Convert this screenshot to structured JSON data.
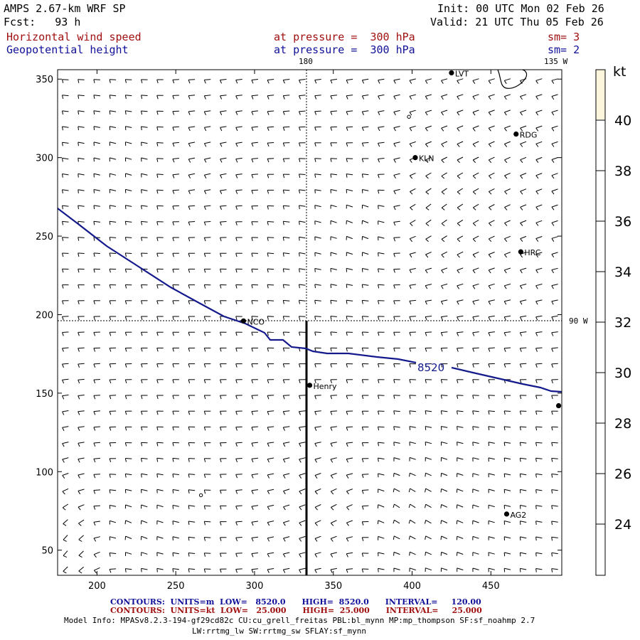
{
  "header": {
    "model": "AMPS 2.67-km WRF SP",
    "forecast": "Fcst:   93 h",
    "init": "Init: 00 UTC Mon 02 Feb 26",
    "valid": "Valid: 21 UTC Thu 05 Feb 26",
    "field1_name": "Horizontal wind speed",
    "field1_level": "at pressure =  300 hPa",
    "field1_smooth": "sm= 3",
    "field2_name": "Geopotential height",
    "field2_level": "at pressure =  300 hPa",
    "field2_smooth": "sm= 2"
  },
  "map": {
    "x_ticks": [
      200,
      250,
      300,
      350,
      400,
      450
    ],
    "y_ticks": [
      50,
      100,
      150,
      200,
      250,
      300,
      350
    ],
    "x_range": [
      175,
      495
    ],
    "y_range": [
      34,
      356
    ],
    "meridian_label_top": "180",
    "meridian_label_corner": "135 W",
    "meridian_label_right": "90 W",
    "contour_label": "8520",
    "contour_color": "#141a8c",
    "stations": [
      {
        "name": "NCO",
        "x": 293,
        "y": 196
      },
      {
        "name": "Henry",
        "x": 335,
        "y": 155
      },
      {
        "name": "KLN",
        "x": 402,
        "y": 300
      },
      {
        "name": "RDG",
        "x": 466,
        "y": 315
      },
      {
        "name": "HRC",
        "x": 469,
        "y": 240
      },
      {
        "name": "AG2",
        "x": 460,
        "y": 73
      },
      {
        "name": "LVT",
        "x": 425,
        "y": 354
      },
      {
        "name": "",
        "x": 493,
        "y": 142
      }
    ],
    "calm_points": [
      {
        "x": 398,
        "y": 326
      },
      {
        "x": 266,
        "y": 85
      }
    ]
  },
  "colorbar": {
    "unit": "kt",
    "ticks": [
      "24",
      "26",
      "28",
      "30",
      "32",
      "34",
      "36",
      "38",
      "40"
    ],
    "fill_color": "#fdf6dc"
  },
  "footer": {
    "contours1": "CONTOURS:  UNITS=m  LOW=   8520.0      HIGH=  8520.0      INTERVAL=     120.00",
    "contours2": "CONTOURS:  UNITS=kt  LOW=   25.000      HIGH=  25.000      INTERVAL=     25.000",
    "model_info": "Model Info: MPASv8.2.3-194-gf29cd82c CU:cu_grell_freitas PBL:bl_mynn MP:mp_thompson SF:sf_noahmp 2.7",
    "model_info2": "LW:rrtmg_lw SW:rrtmg_sw SFLAY:sf_mynn"
  }
}
